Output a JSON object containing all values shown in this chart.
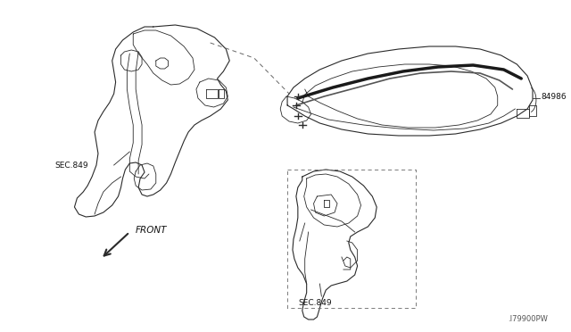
{
  "background_color": "#ffffff",
  "fig_width": 6.4,
  "fig_height": 3.72,
  "dpi": 100,
  "labels": {
    "sec849_left": "SEC.849",
    "sec849_right": "SEC.849",
    "part_number": "84986",
    "front_label": "FRONT",
    "diagram_code": ".I79900PW"
  },
  "line_color": "#2a2a2a",
  "dashed_color": "#666666",
  "thick_stripe_color": "#1a1a1a"
}
